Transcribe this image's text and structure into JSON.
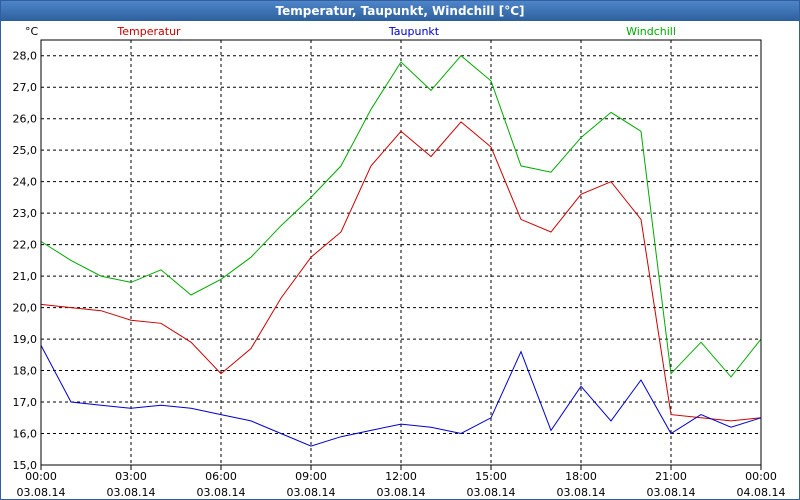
{
  "window": {
    "title": "Temperatur, Taupunkt, Windchill [°C]"
  },
  "chart_data": {
    "type": "line",
    "title": "Temperatur, Taupunkt, Windchill [°C]",
    "ylabel": "°C",
    "ylim": [
      15.0,
      28.5
    ],
    "grid": true,
    "legend": "top",
    "yticks": [
      "15,0",
      "16,0",
      "17,0",
      "18,0",
      "19,0",
      "20,0",
      "21,0",
      "22,0",
      "23,0",
      "24,0",
      "25,0",
      "26,0",
      "27,0",
      "28,0"
    ],
    "xticks": [
      {
        "time": "00:00",
        "date": "03.08.14"
      },
      {
        "time": "03:00",
        "date": "03.08.14"
      },
      {
        "time": "06:00",
        "date": "03.08.14"
      },
      {
        "time": "09:00",
        "date": "03.08.14"
      },
      {
        "time": "12:00",
        "date": "03.08.14"
      },
      {
        "time": "15:00",
        "date": "03.08.14"
      },
      {
        "time": "18:00",
        "date": "03.08.14"
      },
      {
        "time": "21:00",
        "date": "03.08.14"
      },
      {
        "time": "00:00",
        "date": "04.08.14"
      }
    ],
    "x": [
      "00:00",
      "01:00",
      "02:00",
      "03:00",
      "04:00",
      "05:00",
      "06:00",
      "07:00",
      "08:00",
      "09:00",
      "10:00",
      "11:00",
      "12:00",
      "13:00",
      "14:00",
      "15:00",
      "16:00",
      "17:00",
      "18:00",
      "19:00",
      "20:00",
      "21:00",
      "22:00",
      "23:00",
      "24:00"
    ],
    "series": [
      {
        "name": "Temperatur",
        "color": "#cc0000",
        "values": [
          20.1,
          20.0,
          19.9,
          19.6,
          19.5,
          18.9,
          17.9,
          18.7,
          20.3,
          21.6,
          22.4,
          24.5,
          25.6,
          24.8,
          25.9,
          25.1,
          22.8,
          22.4,
          23.6,
          24.0,
          22.8,
          16.6,
          16.5,
          16.4,
          16.5
        ]
      },
      {
        "name": "Taupunkt",
        "color": "#0000cc",
        "values": [
          18.8,
          17.0,
          16.9,
          16.8,
          16.9,
          16.8,
          16.6,
          16.4,
          16.0,
          15.6,
          15.9,
          16.1,
          16.3,
          16.2,
          16.0,
          16.5,
          18.6,
          16.1,
          17.5,
          16.4,
          17.7,
          16.0,
          16.6,
          16.2,
          16.5
        ]
      },
      {
        "name": "Windchill",
        "color": "#00aa00",
        "values": [
          22.1,
          21.5,
          21.0,
          20.8,
          21.2,
          20.4,
          20.9,
          21.6,
          22.6,
          23.5,
          24.5,
          26.3,
          27.8,
          26.9,
          28.0,
          27.2,
          24.5,
          24.3,
          25.4,
          26.2,
          25.6,
          17.9,
          18.9,
          17.8,
          19.0
        ]
      }
    ]
  }
}
